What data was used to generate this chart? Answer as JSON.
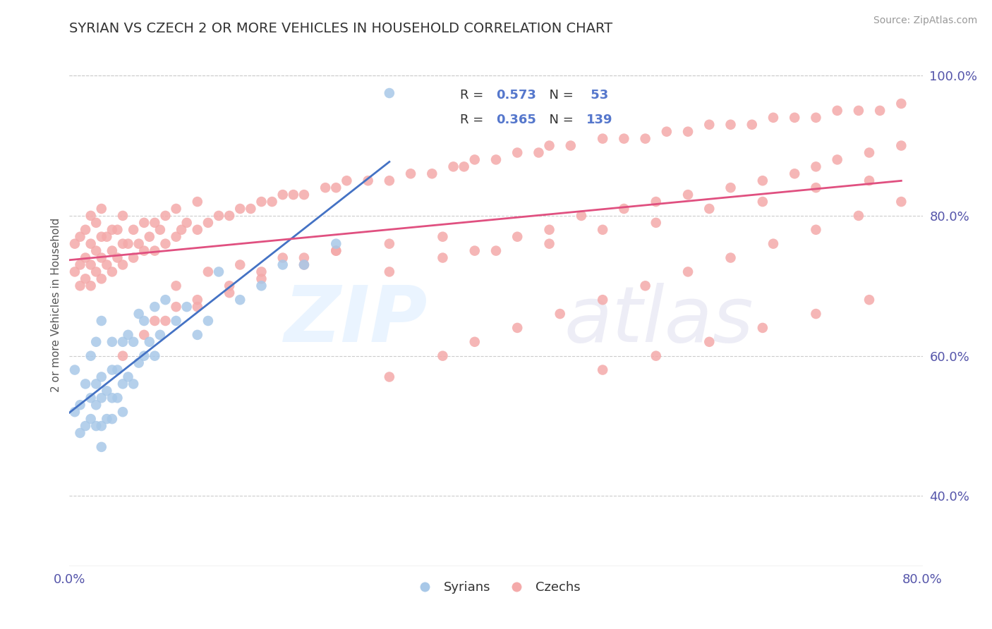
{
  "title": "SYRIAN VS CZECH 2 OR MORE VEHICLES IN HOUSEHOLD CORRELATION CHART",
  "source_text": "Source: ZipAtlas.com",
  "ylabel": "2 or more Vehicles in Household",
  "xmin": 0.0,
  "xmax": 0.8,
  "ymin": 0.3,
  "ymax": 1.045,
  "right_yticks": [
    0.4,
    0.6,
    0.8,
    1.0
  ],
  "right_yticklabels": [
    "40.0%",
    "60.0%",
    "80.0%",
    "100.0%"
  ],
  "blue_color": "#a8c8e8",
  "pink_color": "#f4aaaa",
  "blue_line_color": "#4472c4",
  "pink_line_color": "#e05080",
  "syrians_x": [
    0.005,
    0.005,
    0.01,
    0.01,
    0.015,
    0.015,
    0.02,
    0.02,
    0.02,
    0.025,
    0.025,
    0.025,
    0.025,
    0.03,
    0.03,
    0.03,
    0.03,
    0.03,
    0.035,
    0.035,
    0.04,
    0.04,
    0.04,
    0.04,
    0.045,
    0.045,
    0.05,
    0.05,
    0.05,
    0.055,
    0.055,
    0.06,
    0.06,
    0.065,
    0.065,
    0.07,
    0.07,
    0.075,
    0.08,
    0.08,
    0.085,
    0.09,
    0.1,
    0.11,
    0.12,
    0.13,
    0.14,
    0.16,
    0.18,
    0.2,
    0.22,
    0.25,
    0.3
  ],
  "syrians_y": [
    0.52,
    0.58,
    0.49,
    0.53,
    0.5,
    0.56,
    0.51,
    0.54,
    0.6,
    0.5,
    0.53,
    0.56,
    0.62,
    0.47,
    0.5,
    0.54,
    0.57,
    0.65,
    0.51,
    0.55,
    0.51,
    0.54,
    0.58,
    0.62,
    0.54,
    0.58,
    0.52,
    0.56,
    0.62,
    0.57,
    0.63,
    0.56,
    0.62,
    0.59,
    0.66,
    0.6,
    0.65,
    0.62,
    0.6,
    0.67,
    0.63,
    0.68,
    0.65,
    0.67,
    0.63,
    0.65,
    0.72,
    0.68,
    0.7,
    0.73,
    0.73,
    0.76,
    0.975
  ],
  "czechs_x": [
    0.005,
    0.005,
    0.01,
    0.01,
    0.01,
    0.015,
    0.015,
    0.015,
    0.02,
    0.02,
    0.02,
    0.02,
    0.025,
    0.025,
    0.025,
    0.03,
    0.03,
    0.03,
    0.03,
    0.035,
    0.035,
    0.04,
    0.04,
    0.04,
    0.045,
    0.045,
    0.05,
    0.05,
    0.05,
    0.055,
    0.06,
    0.06,
    0.065,
    0.07,
    0.07,
    0.075,
    0.08,
    0.08,
    0.085,
    0.09,
    0.09,
    0.1,
    0.1,
    0.105,
    0.11,
    0.12,
    0.12,
    0.13,
    0.14,
    0.15,
    0.16,
    0.17,
    0.18,
    0.19,
    0.2,
    0.21,
    0.22,
    0.24,
    0.25,
    0.26,
    0.28,
    0.3,
    0.32,
    0.34,
    0.36,
    0.37,
    0.38,
    0.4,
    0.42,
    0.44,
    0.45,
    0.47,
    0.5,
    0.52,
    0.54,
    0.56,
    0.58,
    0.6,
    0.62,
    0.64,
    0.66,
    0.68,
    0.7,
    0.72,
    0.74,
    0.76,
    0.78,
    0.08,
    0.1,
    0.12,
    0.15,
    0.18,
    0.22,
    0.25,
    0.05,
    0.07,
    0.09,
    0.12,
    0.15,
    0.18,
    0.22,
    0.1,
    0.13,
    0.16,
    0.2,
    0.25,
    0.3,
    0.35,
    0.3,
    0.35,
    0.38,
    0.42,
    0.45,
    0.48,
    0.52,
    0.55,
    0.58,
    0.62,
    0.65,
    0.68,
    0.7,
    0.72,
    0.75,
    0.78,
    0.4,
    0.45,
    0.5,
    0.55,
    0.6,
    0.65,
    0.7,
    0.75,
    0.3,
    0.35,
    0.38,
    0.42,
    0.46,
    0.5,
    0.54,
    0.58,
    0.62,
    0.66,
    0.7,
    0.74,
    0.78,
    0.5,
    0.55,
    0.6,
    0.65,
    0.7,
    0.75
  ],
  "czechs_y": [
    0.72,
    0.76,
    0.7,
    0.73,
    0.77,
    0.71,
    0.74,
    0.78,
    0.7,
    0.73,
    0.76,
    0.8,
    0.72,
    0.75,
    0.79,
    0.71,
    0.74,
    0.77,
    0.81,
    0.73,
    0.77,
    0.72,
    0.75,
    0.78,
    0.74,
    0.78,
    0.73,
    0.76,
    0.8,
    0.76,
    0.74,
    0.78,
    0.76,
    0.75,
    0.79,
    0.77,
    0.75,
    0.79,
    0.78,
    0.76,
    0.8,
    0.77,
    0.81,
    0.78,
    0.79,
    0.78,
    0.82,
    0.79,
    0.8,
    0.8,
    0.81,
    0.81,
    0.82,
    0.82,
    0.83,
    0.83,
    0.83,
    0.84,
    0.84,
    0.85,
    0.85,
    0.85,
    0.86,
    0.86,
    0.87,
    0.87,
    0.88,
    0.88,
    0.89,
    0.89,
    0.9,
    0.9,
    0.91,
    0.91,
    0.91,
    0.92,
    0.92,
    0.93,
    0.93,
    0.93,
    0.94,
    0.94,
    0.94,
    0.95,
    0.95,
    0.95,
    0.96,
    0.65,
    0.67,
    0.68,
    0.7,
    0.72,
    0.74,
    0.75,
    0.6,
    0.63,
    0.65,
    0.67,
    0.69,
    0.71,
    0.73,
    0.7,
    0.72,
    0.73,
    0.74,
    0.75,
    0.76,
    0.77,
    0.72,
    0.74,
    0.75,
    0.77,
    0.78,
    0.8,
    0.81,
    0.82,
    0.83,
    0.84,
    0.85,
    0.86,
    0.87,
    0.88,
    0.89,
    0.9,
    0.75,
    0.76,
    0.78,
    0.79,
    0.81,
    0.82,
    0.84,
    0.85,
    0.57,
    0.6,
    0.62,
    0.64,
    0.66,
    0.68,
    0.7,
    0.72,
    0.74,
    0.76,
    0.78,
    0.8,
    0.82,
    0.58,
    0.6,
    0.62,
    0.64,
    0.66,
    0.68
  ]
}
